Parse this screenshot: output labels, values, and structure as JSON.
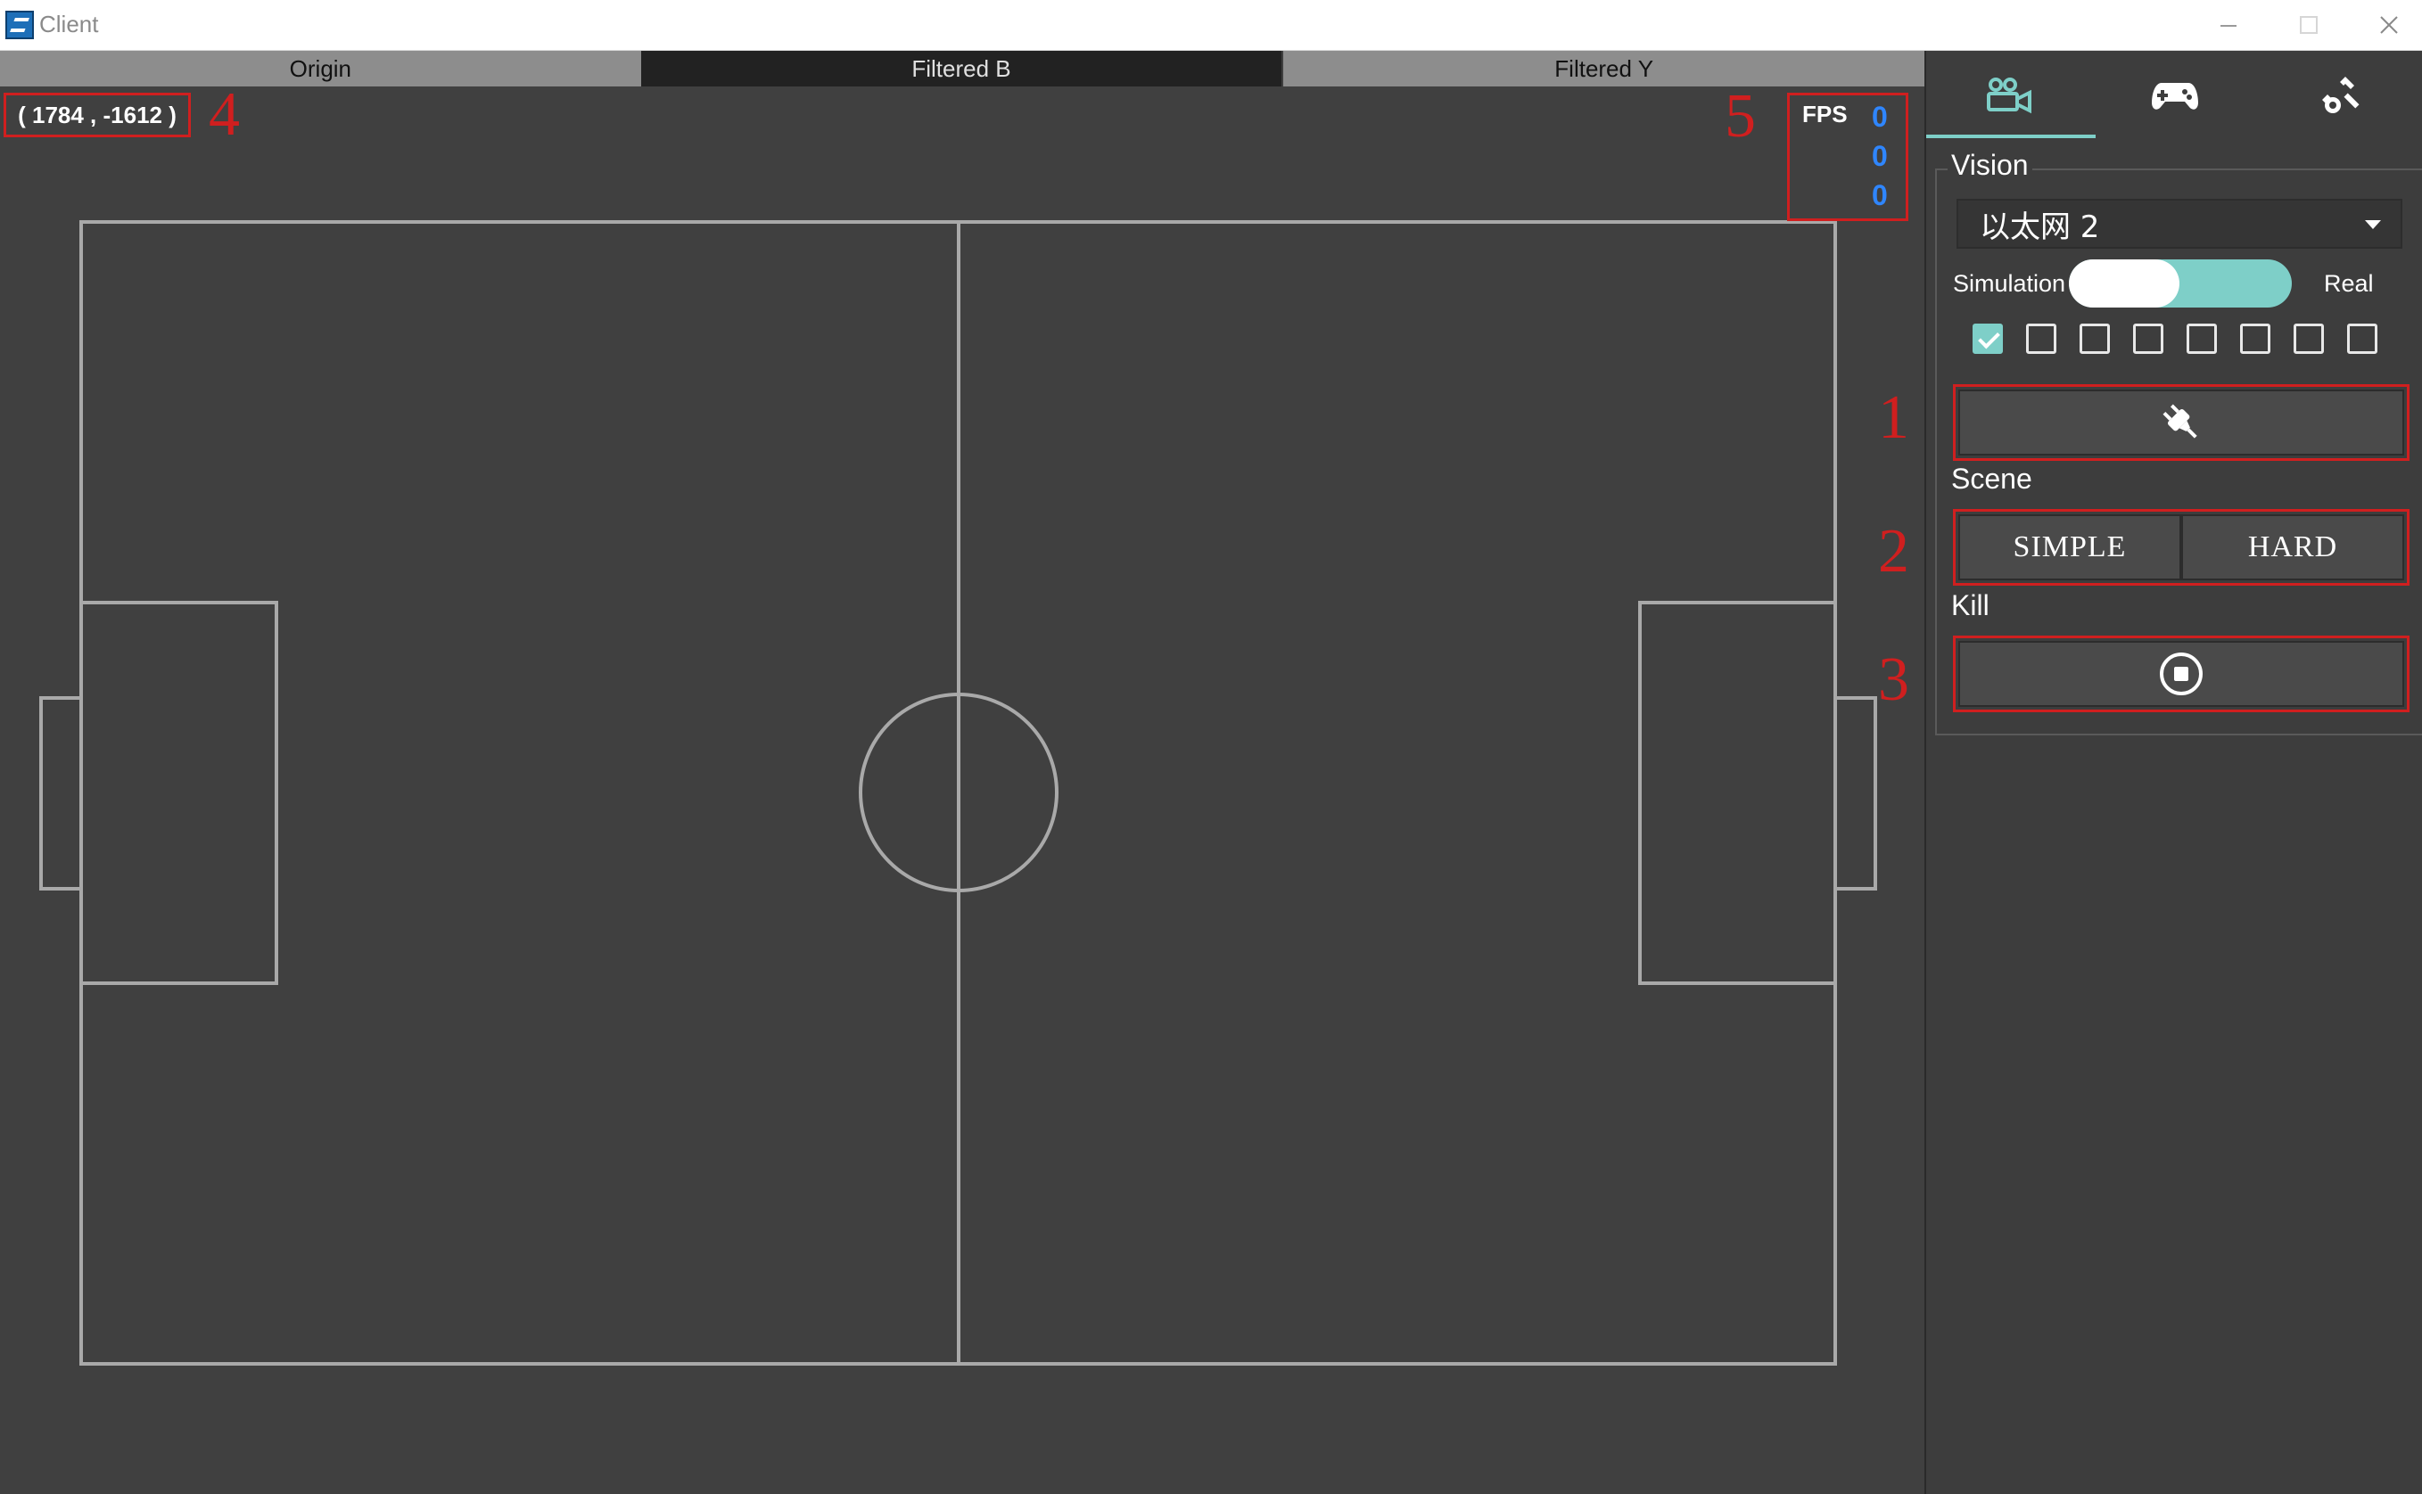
{
  "window": {
    "title": "Client",
    "minimize_icon": "minimize-icon",
    "maximize_icon": "maximize-icon",
    "close_icon": "close-icon"
  },
  "tabs": [
    {
      "label": "Origin"
    },
    {
      "label": "Filtered B"
    },
    {
      "label": "Filtered Y"
    }
  ],
  "field": {
    "cursor_coords": "( 1784 , -1612 )",
    "fps": {
      "label": "FPS",
      "values": [
        "0",
        "0",
        "0"
      ]
    }
  },
  "annotations": [
    "1",
    "2",
    "3",
    "4",
    "5"
  ],
  "side_panel": {
    "tabs": [
      {
        "icon": "camera-icon"
      },
      {
        "icon": "gamepad-icon"
      },
      {
        "icon": "tools-icon"
      }
    ],
    "vision": {
      "title": "Vision",
      "network": "以太网 2",
      "mode_left": "Simulation",
      "mode_right": "Real",
      "mode_value": "Simulation",
      "checkboxes": [
        true,
        false,
        false,
        false,
        false,
        false,
        false,
        false
      ],
      "connect_icon": "plug-icon"
    },
    "scene": {
      "title": "Scene",
      "buttons": [
        "SIMPLE",
        "HARD"
      ]
    },
    "kill": {
      "title": "Kill",
      "stop_icon": "stop-icon"
    }
  },
  "colors": {
    "accent": "#7ecfc8",
    "annotation": "#d01f1f",
    "fps_value": "#2f86ff",
    "field_line": "#a9a9a9"
  }
}
